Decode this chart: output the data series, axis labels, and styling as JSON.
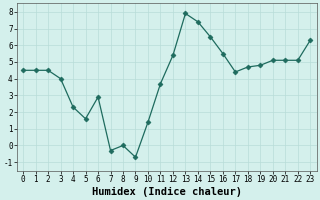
{
  "x": [
    0,
    1,
    2,
    3,
    4,
    5,
    6,
    7,
    8,
    9,
    10,
    11,
    12,
    13,
    14,
    15,
    16,
    17,
    18,
    19,
    20,
    21,
    22,
    23
  ],
  "y": [
    4.5,
    4.5,
    4.5,
    4.0,
    2.3,
    1.6,
    2.9,
    -0.3,
    0.0,
    -0.7,
    1.4,
    3.7,
    5.4,
    7.9,
    7.4,
    6.5,
    5.5,
    4.4,
    4.7,
    4.8,
    5.1,
    5.1,
    5.1,
    6.3
  ],
  "line_color": "#1e6b5e",
  "marker": "D",
  "marker_size": 2.5,
  "bg_color": "#d4f0ec",
  "grid_color": "#b8ddd8",
  "xlabel": "Humidex (Indice chaleur)",
  "ylabel": "",
  "xlim": [
    -0.5,
    23.5
  ],
  "ylim": [
    -1.5,
    8.5
  ],
  "yticks": [
    -1,
    0,
    1,
    2,
    3,
    4,
    5,
    6,
    7,
    8
  ],
  "xticks": [
    0,
    1,
    2,
    3,
    4,
    5,
    6,
    7,
    8,
    9,
    10,
    11,
    12,
    13,
    14,
    15,
    16,
    17,
    18,
    19,
    20,
    21,
    22,
    23
  ],
  "tick_fontsize": 5.5,
  "label_fontsize": 7.5,
  "spine_color": "#555555",
  "line_width": 0.9
}
